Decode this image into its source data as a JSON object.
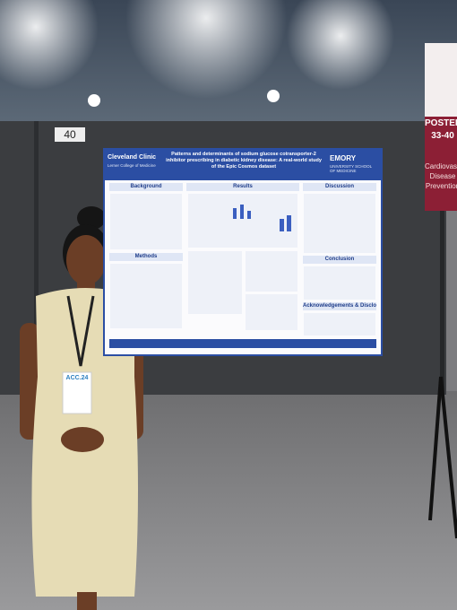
{
  "sign": {
    "posters": "POSTERS",
    "range": "33-40",
    "topic": "Cardiovascular Disease Prevention"
  },
  "board_number": "40",
  "poster": {
    "title": "Patterns and determinants of sodium glucose cotransporter-2 inhibitor prescribing in diabetic kidney disease: A real-world study of the Epic Cosmos dataset",
    "institution_left": "Cleveland Clinic",
    "institution_left_sub": "Lerner College of Medicine",
    "institution_right": "EMORY",
    "institution_right_sub": "UNIVERSITY SCHOOL OF MEDICINE",
    "sections": [
      "Background",
      "Methods",
      "Results",
      "Discussion",
      "Conclusion",
      "Acknowledgements & Disclosures"
    ]
  },
  "badge": "ACC.24"
}
